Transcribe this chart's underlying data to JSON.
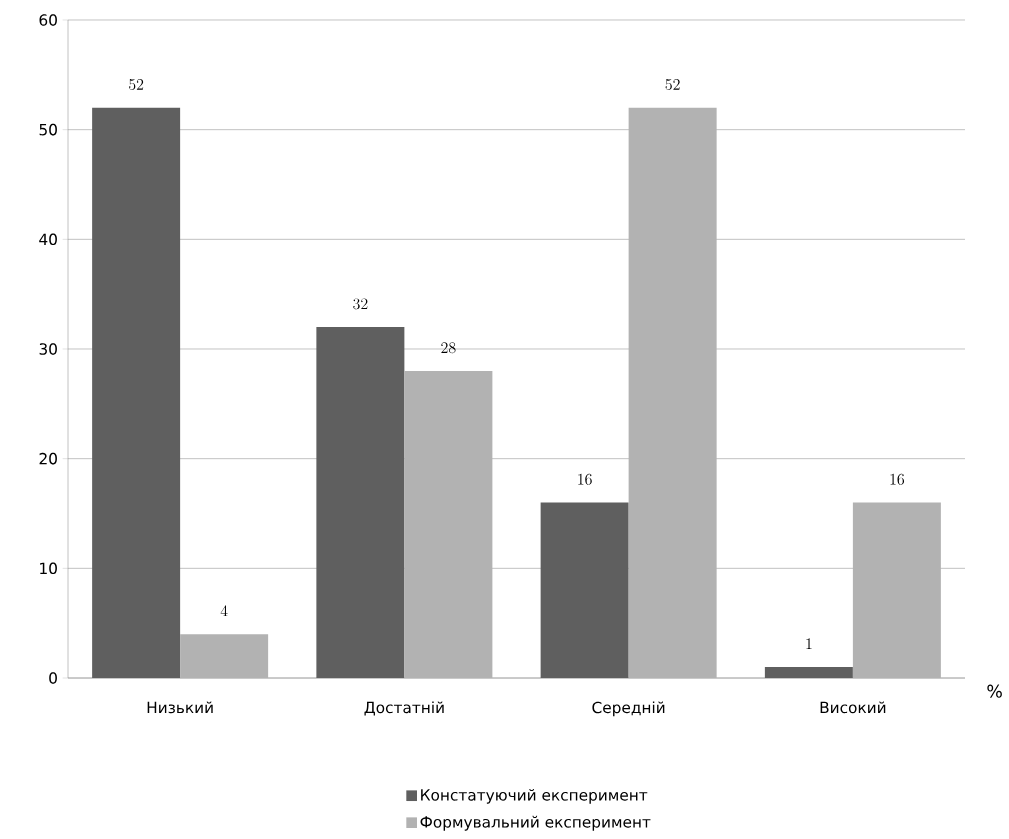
{
  "chart_data": {
    "type": "bar",
    "categories": [
      "Низький",
      "Достатній",
      "Середній",
      "Високий"
    ],
    "series": [
      {
        "name": "Констатуючий експеримент",
        "color": "#5f5f5f",
        "values": [
          52,
          32,
          16,
          1
        ]
      },
      {
        "name": "Формувальний експеримент",
        "color": "#b2b2b2",
        "values": [
          4,
          28,
          52,
          16
        ]
      }
    ],
    "xlabel": "%",
    "ylim": [
      0,
      60
    ],
    "yticks": [
      0,
      10,
      20,
      30,
      40,
      50,
      60
    ],
    "grid": "y",
    "legend": "bottom",
    "data_labels": true
  }
}
